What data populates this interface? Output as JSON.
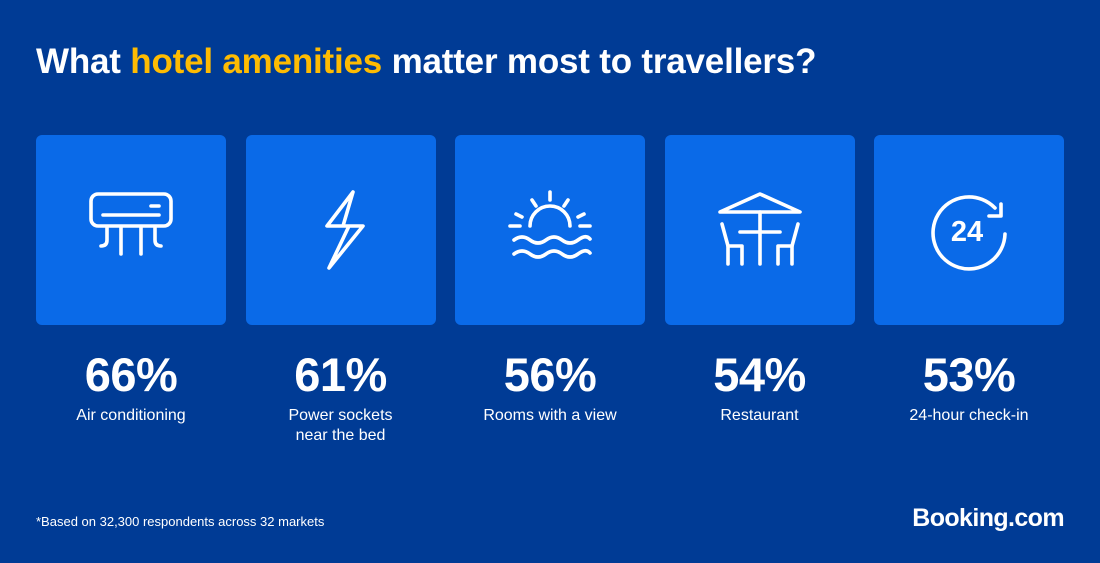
{
  "colors": {
    "background": "#003b95",
    "tile": "#0a6ae8",
    "highlight": "#febb02",
    "text": "#ffffff"
  },
  "title": {
    "before": "What ",
    "highlight": "hotel amenities",
    "after": " matter most to travellers?"
  },
  "amenities": [
    {
      "icon": "air-conditioner-icon",
      "percent": "66%",
      "label": "Air conditioning"
    },
    {
      "icon": "lightning-bolt-icon",
      "percent": "61%",
      "label": "Power sockets\nnear the bed"
    },
    {
      "icon": "sunset-water-icon",
      "percent": "56%",
      "label": "Rooms with a view"
    },
    {
      "icon": "restaurant-table-icon",
      "percent": "54%",
      "label": "Restaurant"
    },
    {
      "icon": "24-hour-clock-icon",
      "icon_text": "24",
      "percent": "53%",
      "label": "24-hour check-in"
    }
  ],
  "footnote": "*Based on 32,300 respondents across 32 markets",
  "logo": "Booking.com"
}
